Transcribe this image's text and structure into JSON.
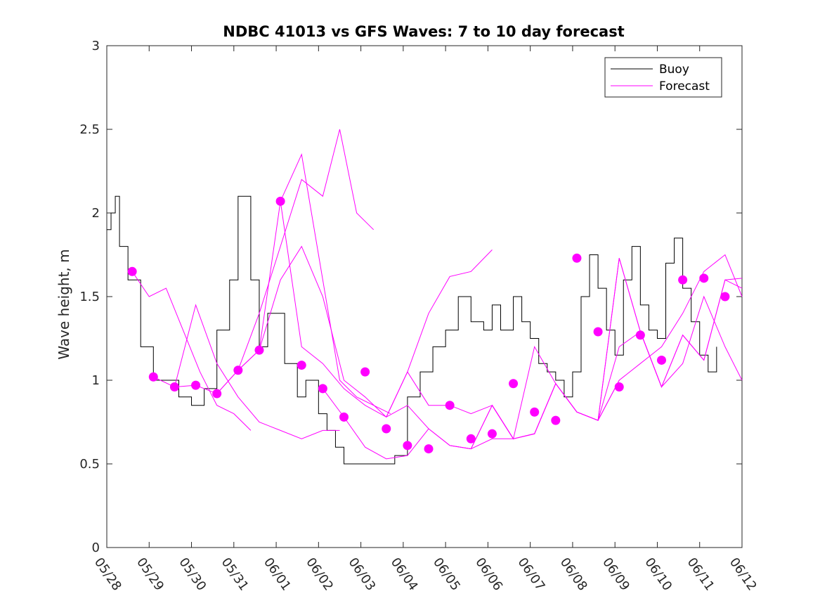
{
  "chart_data": {
    "type": "line",
    "title": "NDBC 41013 vs GFS Waves: 7 to 10 day forecast",
    "xlabel": "",
    "ylabel": "Wave height, m",
    "xlim": [
      "05/28",
      "06/12"
    ],
    "ylim": [
      0,
      3
    ],
    "yticks": [
      "0",
      "0.5",
      "1",
      "1.5",
      "2",
      "2.5",
      "3"
    ],
    "xticks": [
      "05/28",
      "05/29",
      "05/30",
      "05/31",
      "06/01",
      "06/02",
      "06/03",
      "06/04",
      "06/05",
      "06/06",
      "06/07",
      "06/08",
      "06/09",
      "06/10",
      "06/11",
      "06/12"
    ],
    "legend": {
      "position": "top-right",
      "entries": [
        {
          "label": "Buoy",
          "color": "#000000"
        },
        {
          "label": "Forecast",
          "color": "#ff00ff"
        }
      ]
    },
    "colors": {
      "buoy": "#000000",
      "forecast": "#ff00ff"
    },
    "grid": false,
    "x_units": "days since 05/28",
    "series": [
      {
        "name": "Buoy",
        "x": [
          0,
          0.1,
          0.2,
          0.3,
          0.5,
          0.8,
          1.1,
          1.4,
          1.7,
          2.0,
          2.3,
          2.6,
          2.9,
          3.1,
          3.4,
          3.6,
          3.8,
          4.0,
          4.2,
          4.5,
          4.7,
          5.0,
          5.2,
          5.4,
          5.6,
          5.9,
          6.2,
          6.5,
          6.8,
          7.1,
          7.4,
          7.7,
          8.0,
          8.3,
          8.6,
          8.9,
          9.1,
          9.3,
          9.6,
          9.8,
          10.0,
          10.2,
          10.4,
          10.6,
          10.8,
          11.0,
          11.2,
          11.4,
          11.6,
          11.8,
          12.0,
          12.2,
          12.4,
          12.6,
          12.8,
          13.0,
          13.2,
          13.4,
          13.6,
          13.8,
          14.0,
          14.2,
          14.4
        ],
        "y": [
          1.9,
          2.0,
          2.1,
          1.8,
          1.6,
          1.2,
          1.0,
          1.0,
          0.9,
          0.85,
          0.95,
          1.3,
          1.6,
          2.1,
          1.6,
          1.2,
          1.4,
          1.4,
          1.1,
          0.9,
          1.0,
          0.8,
          0.7,
          0.6,
          0.5,
          0.5,
          0.5,
          0.5,
          0.55,
          0.9,
          1.05,
          1.2,
          1.3,
          1.5,
          1.35,
          1.3,
          1.45,
          1.3,
          1.5,
          1.35,
          1.25,
          1.1,
          1.05,
          1.0,
          0.9,
          1.05,
          1.5,
          1.75,
          1.55,
          1.3,
          1.15,
          1.6,
          1.8,
          1.45,
          1.3,
          1.25,
          1.7,
          1.85,
          1.55,
          1.35,
          1.15,
          1.05,
          1.2
        ]
      },
      {
        "name": "Forecast",
        "x": [
          0.6,
          1.0,
          1.4,
          1.8,
          2.2,
          2.6,
          3.0,
          3.4
        ],
        "y": [
          1.65,
          1.5,
          1.55,
          1.3,
          1.05,
          0.85,
          0.8,
          0.7
        ]
      },
      {
        "name": "Forecast",
        "x": [
          1.1,
          1.6,
          2.1,
          2.6,
          3.1,
          3.6,
          4.1,
          4.6,
          5.1,
          5.5
        ],
        "y": [
          1.02,
          0.96,
          1.45,
          1.1,
          0.9,
          0.75,
          0.7,
          0.65,
          0.7,
          0.7
        ]
      },
      {
        "name": "Forecast",
        "x": [
          1.6,
          2.1,
          2.6,
          3.1,
          3.6,
          4.1,
          4.6,
          5.1,
          5.5,
          5.9,
          6.3,
          6.7
        ],
        "y": [
          0.96,
          0.97,
          0.92,
          1.06,
          1.18,
          2.07,
          2.35,
          1.6,
          1.0,
          0.9,
          0.85,
          0.8
        ]
      },
      {
        "name": "Forecast",
        "x": [
          2.6,
          3.1,
          3.6,
          4.1,
          4.6,
          5.1,
          5.5,
          5.9,
          6.3
        ],
        "y": [
          0.92,
          1.06,
          1.4,
          1.8,
          2.2,
          2.1,
          2.5,
          2.0,
          1.9
        ]
      },
      {
        "name": "Forecast",
        "x": [
          3.1,
          3.6,
          4.1,
          4.6,
          5.1,
          5.6,
          6.1,
          6.6,
          7.1,
          7.6,
          8.1,
          8.6,
          9.1
        ],
        "y": [
          1.06,
          1.18,
          1.6,
          1.8,
          1.5,
          1.0,
          0.9,
          0.78,
          1.05,
          1.4,
          1.62,
          1.65,
          1.78
        ]
      },
      {
        "name": "Forecast",
        "x": [
          4.1,
          4.6,
          5.1,
          5.6,
          6.1,
          6.6,
          7.1,
          7.6,
          8.1,
          8.6,
          9.1,
          9.6,
          10.1
        ],
        "y": [
          2.07,
          1.2,
          1.1,
          0.95,
          0.85,
          0.78,
          0.85,
          0.71,
          0.61,
          0.59,
          0.85,
          0.65,
          0.68
        ]
      },
      {
        "name": "Forecast",
        "x": [
          5.1,
          5.6,
          6.1,
          6.6,
          7.1,
          7.6,
          8.1,
          8.6,
          9.1,
          9.6,
          10.1,
          10.6,
          11.1,
          11.6,
          12.1
        ],
        "y": [
          0.95,
          0.78,
          0.6,
          0.53,
          0.55,
          0.71,
          0.61,
          0.59,
          0.65,
          0.65,
          0.68,
          0.98,
          0.81,
          0.76,
          1.0
        ]
      },
      {
        "name": "Forecast",
        "x": [
          6.6,
          7.1,
          7.6,
          8.1,
          8.6,
          9.1,
          9.6,
          10.1,
          10.6,
          11.1,
          11.6,
          12.1,
          12.6,
          13.1
        ],
        "y": [
          0.78,
          1.05,
          0.85,
          0.85,
          0.8,
          0.85,
          0.65,
          1.2,
          0.98,
          0.81,
          0.76,
          1.73,
          1.29,
          0.96
        ]
      },
      {
        "name": "Forecast",
        "x": [
          8.1,
          8.6,
          9.1,
          9.6,
          10.1,
          10.6,
          11.1,
          11.6,
          12.1,
          12.6,
          13.1,
          13.6,
          14.1,
          14.6,
          15.0
        ],
        "y": [
          0.61,
          0.59,
          0.85,
          0.65,
          0.68,
          0.98,
          0.81,
          0.76,
          1.2,
          1.29,
          0.96,
          1.27,
          1.12,
          1.6,
          1.55
        ]
      },
      {
        "name": "Forecast",
        "x": [
          9.1,
          9.6,
          10.1,
          10.6,
          11.1,
          11.6,
          12.1,
          12.6,
          13.1,
          13.6,
          14.1,
          14.6,
          15.0
        ],
        "y": [
          0.85,
          0.65,
          0.68,
          0.98,
          0.81,
          0.76,
          1.73,
          1.29,
          0.96,
          1.27,
          1.12,
          1.6,
          1.61
        ]
      },
      {
        "name": "Forecast",
        "x": [
          11.6,
          12.1,
          12.6,
          13.1,
          13.6,
          14.1,
          14.6,
          15.0
        ],
        "y": [
          0.76,
          1.0,
          1.1,
          1.2,
          1.4,
          1.65,
          1.75,
          1.5
        ]
      },
      {
        "name": "Forecast",
        "x": [
          12.6,
          13.1,
          13.6,
          14.1,
          14.6,
          15.0
        ],
        "y": [
          1.29,
          0.96,
          1.1,
          1.5,
          1.2,
          1.0
        ]
      }
    ],
    "markers": {
      "name": "Forecast",
      "x": [
        0.6,
        1.1,
        1.6,
        2.1,
        2.6,
        3.1,
        3.6,
        4.1,
        4.6,
        5.1,
        5.6,
        6.1,
        6.6,
        7.1,
        7.6,
        8.1,
        8.6,
        9.1,
        9.6,
        10.1,
        10.6,
        11.1,
        11.6,
        12.1,
        12.6,
        13.1,
        13.6,
        14.1,
        14.6
      ],
      "y": [
        1.65,
        1.02,
        0.96,
        0.97,
        0.92,
        1.06,
        1.18,
        2.07,
        1.09,
        0.95,
        0.78,
        1.05,
        0.71,
        0.61,
        0.59,
        0.85,
        0.65,
        0.68,
        0.98,
        0.81,
        0.76,
        1.73,
        1.29,
        0.96,
        1.27,
        1.12,
        1.6,
        1.61,
        1.5
      ]
    }
  }
}
